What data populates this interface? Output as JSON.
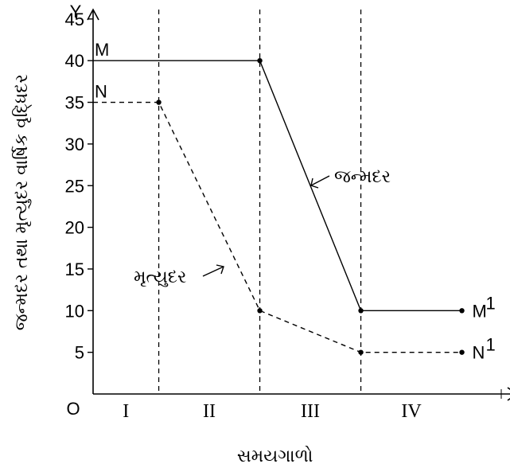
{
  "chart_data": {
    "type": "line",
    "title": "",
    "xlabel": "સમયગાળો",
    "ylabel": "જન્મદર તથા મૃત્યુદર વાર્ષિક વૃદ્ધિદર",
    "x_axis_letter": "X",
    "y_axis_letter": "Y",
    "origin_label": "O",
    "ylim": [
      0,
      47
    ],
    "yticks": [
      5,
      10,
      15,
      20,
      25,
      30,
      35,
      40,
      45
    ],
    "periods": [
      "I",
      "II",
      "III",
      "IV"
    ],
    "grid": false,
    "series": [
      {
        "name": "જન્મદર",
        "style": "solid",
        "start_label": "M",
        "end_label": "M",
        "end_label_sup": "1",
        "points": [
          [
            0,
            40
          ],
          [
            1.5,
            40
          ],
          [
            2.5,
            10
          ],
          [
            3.5,
            10
          ]
        ]
      },
      {
        "name": "મૃત્યુદર",
        "style": "dashed",
        "start_label": "N",
        "end_label": "N",
        "end_label_sup": "1",
        "points": [
          [
            0,
            35
          ],
          [
            0.5,
            35
          ],
          [
            1.5,
            10
          ],
          [
            2.5,
            5
          ],
          [
            3.5,
            5
          ]
        ]
      }
    ],
    "annotations": [
      {
        "text": "જન્મદર",
        "series": 0
      },
      {
        "text": "મૃત્યુદર",
        "series": 1
      }
    ]
  }
}
